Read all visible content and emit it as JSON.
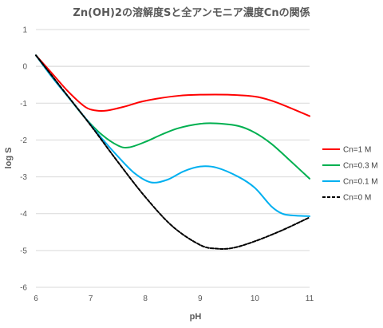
{
  "chart_data": {
    "type": "line",
    "title": "Zn(OH)2の溶解度Sと全アンモニア濃度Cnの関係",
    "xlabel": "pH",
    "ylabel": "log S",
    "xlim": [
      6,
      11
    ],
    "ylim": [
      -6,
      1
    ],
    "x_ticks": [
      "6",
      "7",
      "8",
      "9",
      "10",
      "11"
    ],
    "y_ticks": [
      "1",
      "0",
      "-1",
      "-2",
      "-3",
      "-4",
      "-5",
      "-6"
    ],
    "grid": "horizontal",
    "legend_position": "right",
    "series": [
      {
        "name": "Cn=1 M",
        "color": "#FF0000",
        "dash": "solid",
        "x": [
          6.0,
          6.3,
          6.6,
          6.9,
          7.1,
          7.3,
          7.6,
          7.9,
          8.2,
          8.6,
          9.0,
          9.5,
          10.0,
          10.3,
          10.6,
          11.0
        ],
        "y": [
          0.3,
          -0.2,
          -0.7,
          -1.1,
          -1.2,
          -1.2,
          -1.1,
          -0.97,
          -0.88,
          -0.8,
          -0.77,
          -0.77,
          -0.82,
          -0.93,
          -1.1,
          -1.35
        ]
      },
      {
        "name": "Cn=0.3 M",
        "color": "#00B050",
        "dash": "solid",
        "x": [
          6.0,
          6.3,
          6.6,
          6.9,
          7.2,
          7.5,
          7.7,
          8.0,
          8.3,
          8.6,
          9.0,
          9.3,
          9.7,
          10.0,
          10.3,
          10.6,
          11.0
        ],
        "y": [
          0.3,
          -0.3,
          -0.85,
          -1.4,
          -1.85,
          -2.15,
          -2.2,
          -2.05,
          -1.85,
          -1.68,
          -1.56,
          -1.55,
          -1.62,
          -1.8,
          -2.1,
          -2.5,
          -3.05
        ]
      },
      {
        "name": "Cn=0.1 M",
        "color": "#00B0F0",
        "dash": "solid",
        "x": [
          6.0,
          6.3,
          6.6,
          6.9,
          7.2,
          7.5,
          7.8,
          8.1,
          8.4,
          8.7,
          9.0,
          9.3,
          9.7,
          10.0,
          10.3,
          10.5,
          10.7,
          11.0
        ],
        "y": [
          0.3,
          -0.3,
          -0.85,
          -1.4,
          -1.95,
          -2.45,
          -2.9,
          -3.15,
          -3.08,
          -2.85,
          -2.72,
          -2.75,
          -3.0,
          -3.3,
          -3.8,
          -4.0,
          -4.05,
          -4.07
        ]
      },
      {
        "name": "Cn=0 M",
        "color": "#000000",
        "dash": "dashed",
        "x": [
          6.0,
          6.5,
          7.0,
          7.5,
          8.0,
          8.5,
          9.0,
          9.3,
          9.6,
          10.0,
          10.5,
          11.0
        ],
        "y": [
          0.3,
          -0.65,
          -1.6,
          -2.6,
          -3.55,
          -4.35,
          -4.85,
          -4.95,
          -4.93,
          -4.75,
          -4.45,
          -4.1
        ]
      }
    ]
  }
}
